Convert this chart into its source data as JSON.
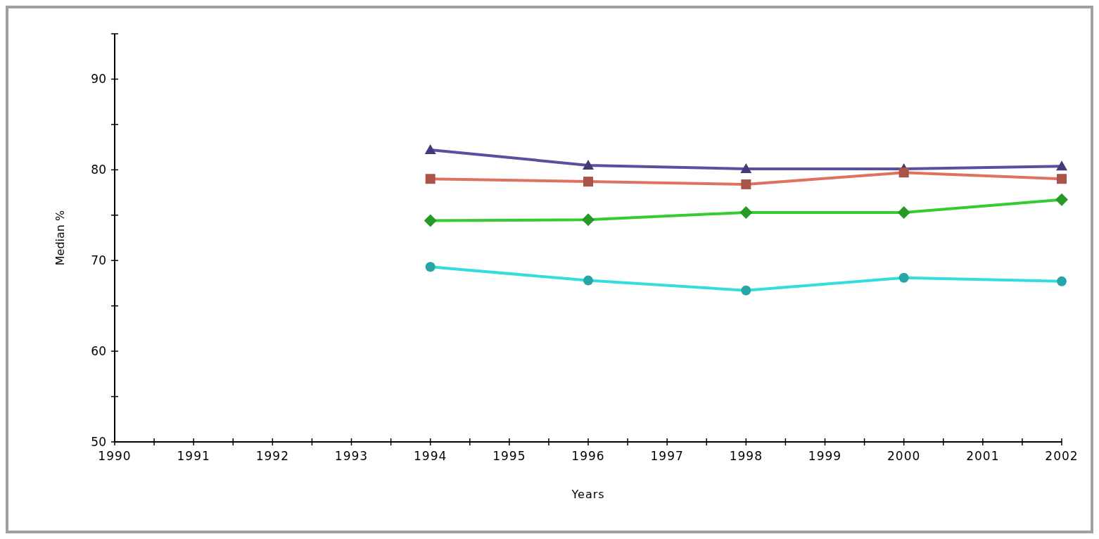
{
  "chart_data": {
    "type": "line",
    "xlabel": "Years",
    "ylabel": "Median %",
    "x": [
      1994,
      1996,
      1998,
      2000,
      2002
    ],
    "xlim": [
      1990,
      2002
    ],
    "xticks": [
      1990,
      {
        "value": 1990.5,
        "label": null
      },
      1991,
      {
        "value": 1991.5,
        "label": null
      },
      1992,
      {
        "value": 1992.5,
        "label": null
      },
      1993,
      {
        "value": 1993.5,
        "label": null
      },
      1994,
      {
        "value": 1994.5,
        "label": null
      },
      1995,
      {
        "value": 1995.5,
        "label": null
      },
      1996,
      {
        "value": 1996.5,
        "label": null
      },
      1997,
      {
        "value": 1997.5,
        "label": null
      },
      1998,
      {
        "value": 1998.5,
        "label": null
      },
      1999,
      {
        "value": 1999.5,
        "label": null
      },
      2000,
      {
        "value": 2000.5,
        "label": null
      },
      2001,
      {
        "value": 2001.5,
        "label": null
      },
      2002
    ],
    "ylim": [
      50,
      95
    ],
    "yticks": [
      50,
      {
        "value": 55,
        "label": null
      },
      60,
      {
        "value": 65,
        "label": null
      },
      70,
      {
        "value": 75,
        "label": null
      },
      80,
      {
        "value": 85,
        "label": null
      },
      90,
      {
        "value": 95,
        "label": null
      }
    ],
    "grid": false,
    "line_style": "solid",
    "series": [
      {
        "color": "#5b4fa0",
        "marker": "triangle",
        "values": [
          82.2,
          80.5,
          80.1,
          80.1,
          80.4
        ]
      },
      {
        "color": "#e07060",
        "marker": "square",
        "values": [
          79.0,
          78.7,
          78.4,
          79.7,
          79.0
        ]
      },
      {
        "color": "#33cc33",
        "marker": "diamond",
        "values": [
          74.4,
          74.5,
          75.3,
          75.3,
          76.7
        ]
      },
      {
        "color": "#33dddd",
        "marker": "circle",
        "values": [
          69.3,
          67.8,
          66.7,
          68.1,
          67.7
        ]
      }
    ]
  }
}
